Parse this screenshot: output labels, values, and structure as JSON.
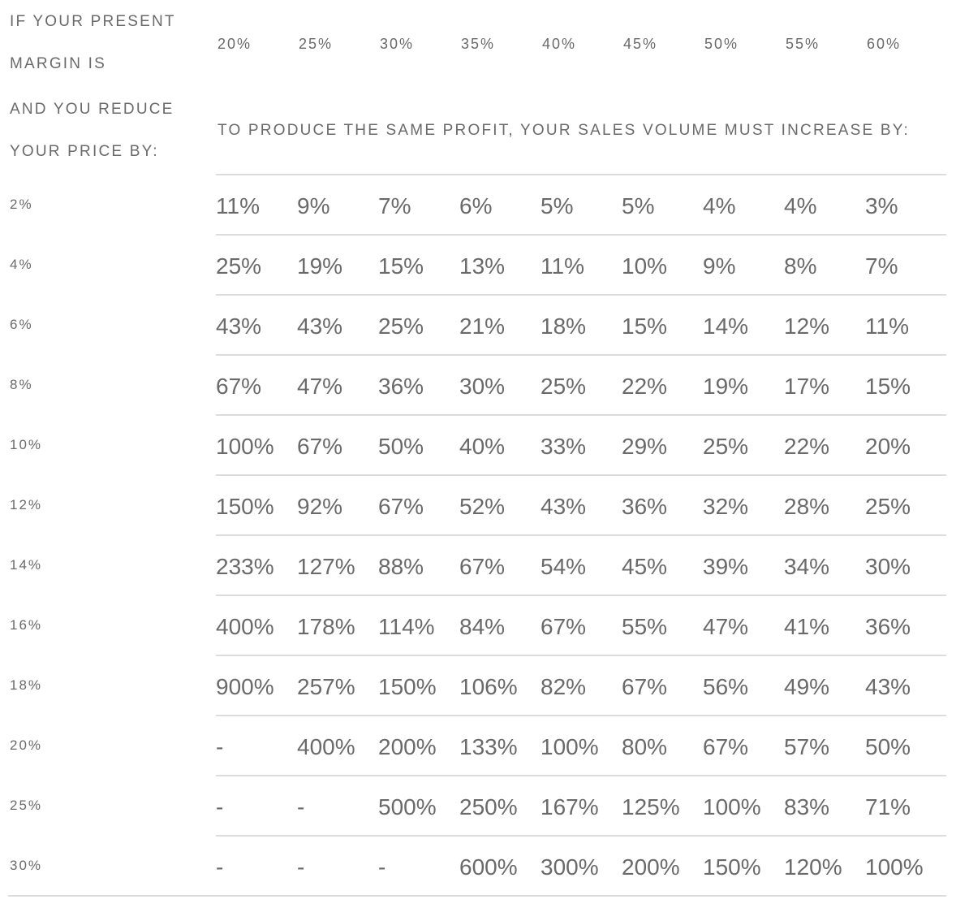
{
  "header": {
    "margin_label_line1": "IF YOUR PRESENT",
    "margin_label_line2": "MARGIN IS",
    "reduce_label_line1": "AND YOU REDUCE",
    "reduce_label_line2": "YOUR PRICE BY:",
    "result_label": "TO PRODUCE THE SAME PROFIT, YOUR SALES VOLUME MUST INCREASE BY:"
  },
  "margins": [
    "20%",
    "25%",
    "30%",
    "35%",
    "40%",
    "45%",
    "50%",
    "55%",
    "60%"
  ],
  "rows": [
    {
      "reduction": "2%",
      "values": [
        "11%",
        "9%",
        "7%",
        "6%",
        "5%",
        "5%",
        "4%",
        "4%",
        "3%"
      ]
    },
    {
      "reduction": "4%",
      "values": [
        "25%",
        "19%",
        "15%",
        "13%",
        "11%",
        "10%",
        "9%",
        "8%",
        "7%"
      ]
    },
    {
      "reduction": "6%",
      "values": [
        "43%",
        "43%",
        "25%",
        "21%",
        "18%",
        "15%",
        "14%",
        "12%",
        "11%"
      ]
    },
    {
      "reduction": "8%",
      "values": [
        "67%",
        "47%",
        "36%",
        "30%",
        "25%",
        "22%",
        "19%",
        "17%",
        "15%"
      ]
    },
    {
      "reduction": "10%",
      "values": [
        "100%",
        "67%",
        "50%",
        "40%",
        "33%",
        "29%",
        "25%",
        "22%",
        "20%"
      ]
    },
    {
      "reduction": "12%",
      "values": [
        "150%",
        "92%",
        "67%",
        "52%",
        "43%",
        "36%",
        "32%",
        "28%",
        "25%"
      ]
    },
    {
      "reduction": "14%",
      "values": [
        "233%",
        "127%",
        "88%",
        "67%",
        "54%",
        "45%",
        "39%",
        "34%",
        "30%"
      ]
    },
    {
      "reduction": "16%",
      "values": [
        "400%",
        "178%",
        "114%",
        "84%",
        "67%",
        "55%",
        "47%",
        "41%",
        "36%"
      ]
    },
    {
      "reduction": "18%",
      "values": [
        "900%",
        "257%",
        "150%",
        "106%",
        "82%",
        "67%",
        "56%",
        "49%",
        "43%"
      ]
    },
    {
      "reduction": "20%",
      "values": [
        "-",
        "400%",
        "200%",
        "133%",
        "100%",
        "80%",
        "67%",
        "57%",
        "50%"
      ]
    },
    {
      "reduction": "25%",
      "values": [
        "-",
        "-",
        "500%",
        "250%",
        "167%",
        "125%",
        "100%",
        "83%",
        "71%"
      ]
    },
    {
      "reduction": "30%",
      "values": [
        "-",
        "-",
        "-",
        "600%",
        "300%",
        "200%",
        "150%",
        "120%",
        "100%"
      ]
    }
  ]
}
